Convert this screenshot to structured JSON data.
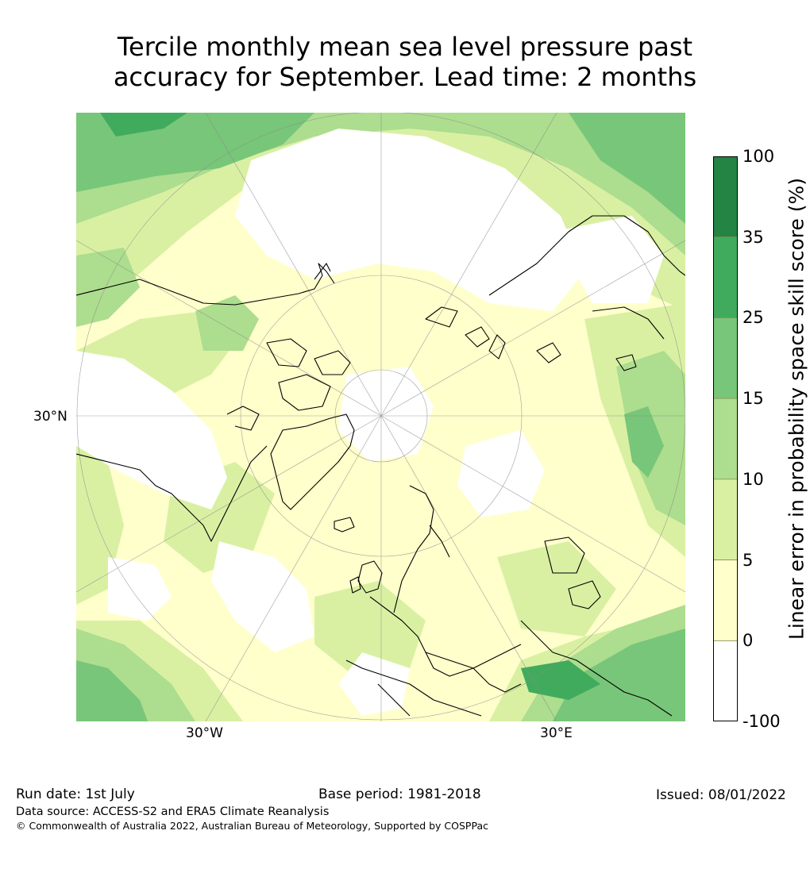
{
  "title": {
    "line1": "Tercile monthly mean sea level pressure past",
    "line2": "accuracy for September. Lead time: 2 months"
  },
  "map": {
    "labels": {
      "lat_30n": "30°N",
      "lon_30w": "30°W",
      "lon_30e": "30°E"
    },
    "colors": {
      "white": "#ffffff",
      "pale_yellow": "#ffffcc",
      "light_green": "#d9f0a3",
      "green1": "#addd8e",
      "green2": "#78c679",
      "green3": "#41ab5d",
      "green4": "#238443"
    }
  },
  "colorbar": {
    "label": "Linear error in probability space skill score (%)",
    "ticks": [
      "100",
      "35",
      "25",
      "15",
      "10",
      "5",
      "0",
      "-100"
    ],
    "bins": [
      {
        "from": 35,
        "to": 100,
        "color": "#238443"
      },
      {
        "from": 25,
        "to": 35,
        "color": "#41ab5d"
      },
      {
        "from": 15,
        "to": 25,
        "color": "#78c679"
      },
      {
        "from": 10,
        "to": 15,
        "color": "#addd8e"
      },
      {
        "from": 5,
        "to": 10,
        "color": "#d9f0a3"
      },
      {
        "from": 0,
        "to": 5,
        "color": "#ffffcc"
      },
      {
        "from": -100,
        "to": 0,
        "color": "#ffffff"
      }
    ]
  },
  "footer": {
    "run_date": "Run date: 1st July",
    "base_period": "Base period: 1981-2018",
    "issued": "Issued: 08/01/2022",
    "data_source": "Data source: ACCESS-S2 and ERA5 Climate Reanalysis",
    "copyright": "© Commonwealth of Australia 2022, Australian Bureau of Meteorology, Supported by COSPPac"
  }
}
